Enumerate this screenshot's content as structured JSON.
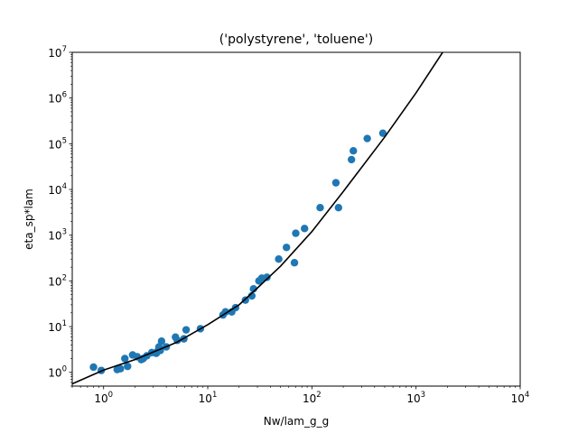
{
  "chart_data": {
    "type": "scatter",
    "title": "('polystyrene', 'toluene')",
    "xlabel": "Nw/lam_g_g",
    "ylabel": "eta_sp*lam",
    "xscale": "log",
    "yscale": "log",
    "xlim": [
      0.5,
      10000
    ],
    "ylim": [
      0.5,
      10000000
    ],
    "grid": false,
    "x_ticks": [
      {
        "value": 1,
        "base": "10",
        "exp": "0"
      },
      {
        "value": 10,
        "base": "10",
        "exp": "1"
      },
      {
        "value": 100,
        "base": "10",
        "exp": "2"
      },
      {
        "value": 1000,
        "base": "10",
        "exp": "3"
      },
      {
        "value": 10000,
        "base": "10",
        "exp": "4"
      }
    ],
    "y_ticks": [
      {
        "value": 1,
        "base": "10",
        "exp": "0"
      },
      {
        "value": 10,
        "base": "10",
        "exp": "1"
      },
      {
        "value": 100,
        "base": "10",
        "exp": "2"
      },
      {
        "value": 1000,
        "base": "10",
        "exp": "3"
      },
      {
        "value": 10000,
        "base": "10",
        "exp": "4"
      },
      {
        "value": 100000,
        "base": "10",
        "exp": "5"
      },
      {
        "value": 1000000,
        "base": "10",
        "exp": "6"
      },
      {
        "value": 10000000,
        "base": "10",
        "exp": "7"
      }
    ],
    "series": [
      {
        "kind": "scatter",
        "color": "#1f77b4",
        "points": [
          [
            0.8,
            1.3
          ],
          [
            0.95,
            1.1
          ],
          [
            1.35,
            1.15
          ],
          [
            1.45,
            1.2
          ],
          [
            1.6,
            2.0
          ],
          [
            1.7,
            1.35
          ],
          [
            1.9,
            2.4
          ],
          [
            2.1,
            2.2
          ],
          [
            2.3,
            1.9
          ],
          [
            2.4,
            2.0
          ],
          [
            2.6,
            2.3
          ],
          [
            2.9,
            2.7
          ],
          [
            3.2,
            2.6
          ],
          [
            3.3,
            2.9
          ],
          [
            3.4,
            3.6
          ],
          [
            3.5,
            3.0
          ],
          [
            3.6,
            4.8
          ],
          [
            4.0,
            3.6
          ],
          [
            4.9,
            5.9
          ],
          [
            5.1,
            5.0
          ],
          [
            5.9,
            5.4
          ],
          [
            6.2,
            8.5
          ],
          [
            8.5,
            9.0
          ],
          [
            14.0,
            18.0
          ],
          [
            14.8,
            21.0
          ],
          [
            17.0,
            21.0
          ],
          [
            18.5,
            26.0
          ],
          [
            23.0,
            38.0
          ],
          [
            26.5,
            47.0
          ],
          [
            27.5,
            67.0
          ],
          [
            31.0,
            100.0
          ],
          [
            33.0,
            115.0
          ],
          [
            37.0,
            120.0
          ],
          [
            48.0,
            300.0
          ],
          [
            57.0,
            540.0
          ],
          [
            68.0,
            250.0
          ],
          [
            70.0,
            1100.0
          ],
          [
            85.0,
            1400.0
          ],
          [
            120.0,
            4000.0
          ],
          [
            170.0,
            14000.0
          ],
          [
            180.0,
            4000.0
          ],
          [
            240.0,
            45000.0
          ],
          [
            250.0,
            70000.0
          ],
          [
            340.0,
            130000.0
          ],
          [
            480.0,
            170000.0
          ]
        ]
      },
      {
        "kind": "line",
        "color": "#000000",
        "points": [
          [
            0.5,
            0.56
          ],
          [
            1.0,
            1.12
          ],
          [
            2.0,
            1.9
          ],
          [
            5.0,
            4.5
          ],
          [
            10.0,
            11.0
          ],
          [
            20.0,
            30.0
          ],
          [
            30.0,
            70.0
          ],
          [
            50.0,
            210.0
          ],
          [
            100.0,
            1200.0
          ],
          [
            200.0,
            9000.0
          ],
          [
            500.0,
            140000.0
          ],
          [
            1000.0,
            1300000.0
          ],
          [
            1800.0,
            10000000.0
          ]
        ]
      }
    ]
  }
}
